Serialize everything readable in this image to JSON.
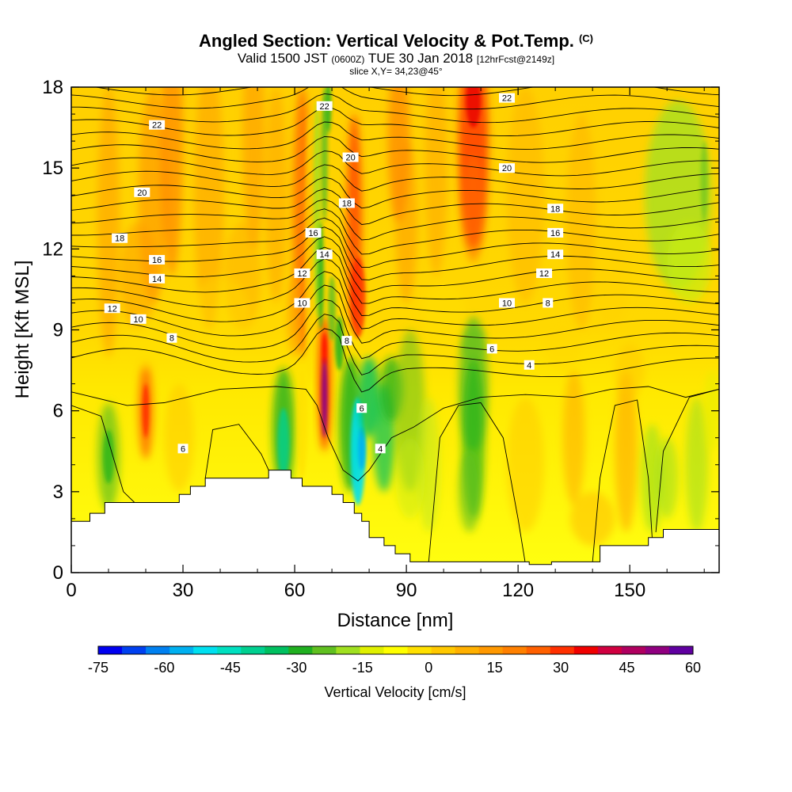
{
  "header": {
    "title": "Angled Section: Vertical Velocity & Pot.Temp.",
    "title_suffix": "(C)",
    "valid_prefix": "Valid 1500 JST",
    "valid_utc": "(0600Z)",
    "valid_date": "TUE 30 Jan 2018",
    "forecast_info": "[12hrFcst@2149z]",
    "slice": "slice X,Y= 34,23@45°"
  },
  "chart_data": {
    "type": "heatmap",
    "xlabel": "Distance [nm]",
    "ylabel": "Height [Kft MSL]",
    "xlim": [
      0,
      174
    ],
    "ylim": [
      0,
      18
    ],
    "x_ticks": [
      0,
      30,
      60,
      90,
      120,
      150
    ],
    "y_ticks": [
      0,
      3,
      6,
      9,
      12,
      15,
      18
    ],
    "colorbar": {
      "title": "Vertical Velocity [cm/s]",
      "range": [
        -75,
        60
      ],
      "tick_values": [
        -75,
        -60,
        -45,
        -30,
        -15,
        0,
        15,
        30,
        45,
        60
      ],
      "colors": [
        "#0000f0",
        "#0040f0",
        "#0080f0",
        "#00b0f0",
        "#00e0f0",
        "#00e0c0",
        "#00d090",
        "#00c060",
        "#20b020",
        "#60c020",
        "#a0e020",
        "#e0f000",
        "#ffff00",
        "#ffe000",
        "#ffc800",
        "#ffb000",
        "#ff9800",
        "#ff8000",
        "#ff6000",
        "#ff3000",
        "#f00000",
        "#d00040",
        "#b00060",
        "#900080",
        "#6000a0"
      ]
    },
    "terrain_kft": [
      [
        0,
        1.9
      ],
      [
        5,
        2.2
      ],
      [
        9,
        2.6
      ],
      [
        18,
        2.6
      ],
      [
        29,
        2.9
      ],
      [
        32,
        3.2
      ],
      [
        36,
        3.5
      ],
      [
        52,
        3.5
      ],
      [
        53,
        3.8
      ],
      [
        58,
        3.8
      ],
      [
        59,
        3.5
      ],
      [
        62,
        3.2
      ],
      [
        67,
        3.2
      ],
      [
        70,
        2.9
      ],
      [
        73,
        2.6
      ],
      [
        76,
        2.2
      ],
      [
        78,
        1.9
      ],
      [
        80,
        1.3
      ],
      [
        84,
        1.0
      ],
      [
        87,
        0.7
      ],
      [
        91,
        0.4
      ],
      [
        103,
        0.4
      ],
      [
        123,
        0.3
      ],
      [
        129,
        0.4
      ],
      [
        140,
        0.4
      ],
      [
        142,
        1.0
      ],
      [
        151,
        1.0
      ],
      [
        155,
        1.3
      ],
      [
        159,
        1.6
      ],
      [
        174,
        1.6
      ]
    ],
    "isentrope_labels": [
      {
        "text": "22",
        "x": 23,
        "y": 16.6
      },
      {
        "text": "20",
        "x": 19,
        "y": 14.1
      },
      {
        "text": "18",
        "x": 13,
        "y": 12.4
      },
      {
        "text": "16",
        "x": 23,
        "y": 11.6
      },
      {
        "text": "14",
        "x": 23,
        "y": 10.9
      },
      {
        "text": "12",
        "x": 11,
        "y": 9.8
      },
      {
        "text": "10",
        "x": 18,
        "y": 9.4
      },
      {
        "text": "8",
        "x": 27,
        "y": 8.7
      },
      {
        "text": "6",
        "x": 30,
        "y": 4.6
      },
      {
        "text": "22",
        "x": 68,
        "y": 17.3
      },
      {
        "text": "20",
        "x": 75,
        "y": 15.4
      },
      {
        "text": "18",
        "x": 74,
        "y": 13.7
      },
      {
        "text": "16",
        "x": 65,
        "y": 12.6
      },
      {
        "text": "14",
        "x": 68,
        "y": 11.8
      },
      {
        "text": "12",
        "x": 62,
        "y": 11.1
      },
      {
        "text": "10",
        "x": 62,
        "y": 10.0
      },
      {
        "text": "8",
        "x": 74,
        "y": 8.6
      },
      {
        "text": "6",
        "x": 78,
        "y": 6.1
      },
      {
        "text": "4",
        "x": 83,
        "y": 4.6
      },
      {
        "text": "22",
        "x": 117,
        "y": 17.6
      },
      {
        "text": "20",
        "x": 117,
        "y": 15.0
      },
      {
        "text": "18",
        "x": 130,
        "y": 13.5
      },
      {
        "text": "16",
        "x": 130,
        "y": 12.6
      },
      {
        "text": "14",
        "x": 130,
        "y": 11.8
      },
      {
        "text": "12",
        "x": 127,
        "y": 11.1
      },
      {
        "text": "10",
        "x": 117,
        "y": 10.0
      },
      {
        "text": "8",
        "x": 128,
        "y": 10.0
      },
      {
        "text": "6",
        "x": 113,
        "y": 8.3
      },
      {
        "text": "4",
        "x": 123,
        "y": 7.7
      }
    ]
  }
}
